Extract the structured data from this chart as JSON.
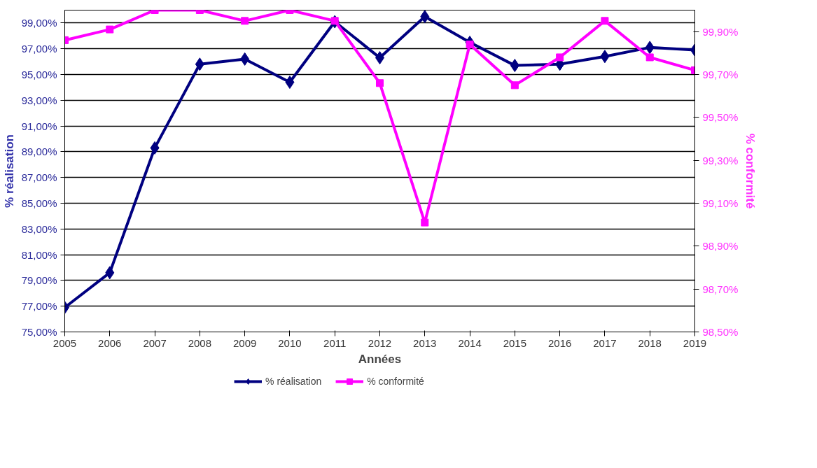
{
  "chart_data": {
    "type": "line",
    "xlabel": "Années",
    "ylabel": "% réalisation",
    "y2label": "% conformité",
    "x": [
      2005,
      2006,
      2007,
      2008,
      2009,
      2010,
      2011,
      2012,
      2013,
      2014,
      2015,
      2016,
      2017,
      2018,
      2019
    ],
    "xlim": [
      2005,
      2019
    ],
    "xticks": [
      2005,
      2006,
      2007,
      2008,
      2009,
      2010,
      2011,
      2012,
      2013,
      2014,
      2015,
      2016,
      2017,
      2018,
      2019
    ],
    "ylim": [
      75,
      100
    ],
    "yticks": [
      {
        "value": 75,
        "label": "75,00%"
      },
      {
        "value": 77,
        "label": "77,00%"
      },
      {
        "value": 79,
        "label": "79,00%"
      },
      {
        "value": 81,
        "label": "81,00%"
      },
      {
        "value": 83,
        "label": "83,00%"
      },
      {
        "value": 85,
        "label": "85,00%"
      },
      {
        "value": 87,
        "label": "87,00%"
      },
      {
        "value": 89,
        "label": "89,00%"
      },
      {
        "value": 91,
        "label": "91,00%"
      },
      {
        "value": 93,
        "label": "93,00%"
      },
      {
        "value": 95,
        "label": "95,00%"
      },
      {
        "value": 97,
        "label": "97,00%"
      },
      {
        "value": 99,
        "label": "99,00%"
      }
    ],
    "y2lim": [
      98.5,
      100
    ],
    "y2ticks": [
      {
        "value": 98.5,
        "label": "98,50%"
      },
      {
        "value": 98.7,
        "label": "98,70%"
      },
      {
        "value": 98.9,
        "label": "98,90%"
      },
      {
        "value": 99.1,
        "label": "99,10%"
      },
      {
        "value": 99.3,
        "label": "99,30%"
      },
      {
        "value": 99.5,
        "label": "99,50%"
      },
      {
        "value": 99.7,
        "label": "99,70%"
      },
      {
        "value": 99.9,
        "label": "99,90%"
      }
    ],
    "grid": "y",
    "legend": "bottom",
    "line_style": "solid",
    "series": [
      {
        "name": "% réalisation",
        "color": "#000080",
        "marker": "diamond",
        "values": [
          76.9,
          79.6,
          89.3,
          95.8,
          96.2,
          94.4,
          99.1,
          96.3,
          99.5,
          97.5,
          95.7,
          95.8,
          96.4,
          97.1,
          96.9
        ]
      },
      {
        "name": "% conformité",
        "color": "#ff00ff",
        "marker": "square",
        "axis": "y2",
        "values": [
          99.86,
          99.91,
          100.0,
          100.0,
          99.95,
          100.0,
          99.95,
          99.66,
          99.01,
          99.84,
          99.65,
          99.78,
          99.95,
          99.78,
          99.72
        ]
      }
    ]
  }
}
